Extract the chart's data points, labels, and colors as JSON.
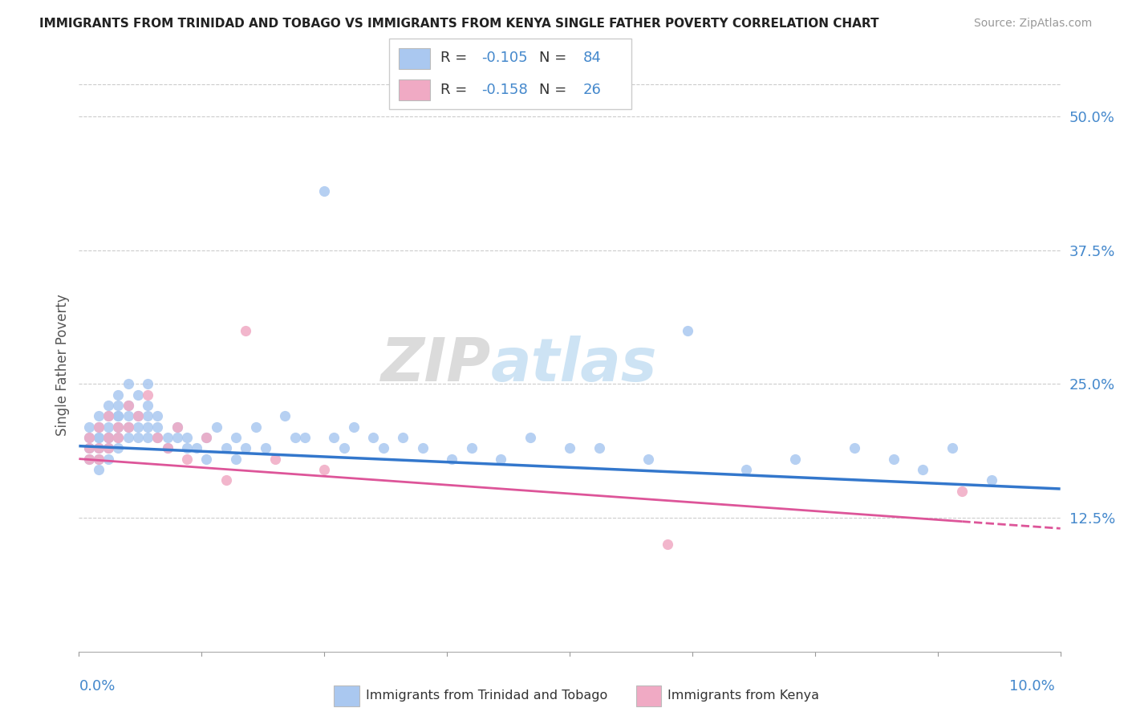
{
  "title": "IMMIGRANTS FROM TRINIDAD AND TOBAGO VS IMMIGRANTS FROM KENYA SINGLE FATHER POVERTY CORRELATION CHART",
  "source": "Source: ZipAtlas.com",
  "ylabel": "Single Father Poverty",
  "y_ticks": [
    0.125,
    0.25,
    0.375,
    0.5
  ],
  "y_tick_labels": [
    "12.5%",
    "25.0%",
    "37.5%",
    "50.0%"
  ],
  "x_min": 0.0,
  "x_max": 0.1,
  "y_min": 0.0,
  "y_max": 0.535,
  "blue_color": "#aac8f0",
  "pink_color": "#f0aac4",
  "blue_line_color": "#3377cc",
  "pink_line_color": "#dd5599",
  "label_color": "#4488cc",
  "text_color": "#333333",
  "grid_color": "#cccccc",
  "R_blue": -0.105,
  "N_blue": 84,
  "R_pink": -0.158,
  "N_pink": 26,
  "legend_label_blue": "Immigrants from Trinidad and Tobago",
  "legend_label_pink": "Immigrants from Kenya",
  "blue_intercept": 0.192,
  "blue_slope": -0.4,
  "pink_intercept": 0.18,
  "pink_slope": -0.65,
  "blue_x": [
    0.001,
    0.001,
    0.001,
    0.001,
    0.002,
    0.002,
    0.002,
    0.002,
    0.002,
    0.002,
    0.002,
    0.003,
    0.003,
    0.003,
    0.003,
    0.003,
    0.003,
    0.003,
    0.004,
    0.004,
    0.004,
    0.004,
    0.004,
    0.004,
    0.004,
    0.005,
    0.005,
    0.005,
    0.005,
    0.005,
    0.006,
    0.006,
    0.006,
    0.006,
    0.007,
    0.007,
    0.007,
    0.007,
    0.007,
    0.008,
    0.008,
    0.008,
    0.009,
    0.009,
    0.01,
    0.01,
    0.011,
    0.011,
    0.012,
    0.013,
    0.013,
    0.014,
    0.015,
    0.016,
    0.016,
    0.017,
    0.018,
    0.019,
    0.021,
    0.022,
    0.023,
    0.025,
    0.026,
    0.027,
    0.028,
    0.03,
    0.031,
    0.033,
    0.035,
    0.038,
    0.04,
    0.043,
    0.046,
    0.05,
    0.053,
    0.058,
    0.062,
    0.068,
    0.073,
    0.079,
    0.083,
    0.086,
    0.089,
    0.093
  ],
  "blue_y": [
    0.19,
    0.21,
    0.18,
    0.2,
    0.22,
    0.2,
    0.19,
    0.21,
    0.18,
    0.2,
    0.17,
    0.23,
    0.21,
    0.2,
    0.22,
    0.19,
    0.18,
    0.2,
    0.24,
    0.22,
    0.21,
    0.23,
    0.2,
    0.19,
    0.22,
    0.25,
    0.23,
    0.22,
    0.21,
    0.2,
    0.24,
    0.22,
    0.2,
    0.21,
    0.25,
    0.23,
    0.22,
    0.21,
    0.2,
    0.22,
    0.2,
    0.21,
    0.19,
    0.2,
    0.21,
    0.2,
    0.2,
    0.19,
    0.19,
    0.2,
    0.18,
    0.21,
    0.19,
    0.2,
    0.18,
    0.19,
    0.21,
    0.19,
    0.22,
    0.2,
    0.2,
    0.43,
    0.2,
    0.19,
    0.21,
    0.2,
    0.19,
    0.2,
    0.19,
    0.18,
    0.19,
    0.18,
    0.2,
    0.19,
    0.19,
    0.18,
    0.3,
    0.17,
    0.18,
    0.19,
    0.18,
    0.17,
    0.19,
    0.16
  ],
  "pink_x": [
    0.001,
    0.001,
    0.001,
    0.002,
    0.002,
    0.002,
    0.003,
    0.003,
    0.003,
    0.004,
    0.004,
    0.005,
    0.005,
    0.006,
    0.007,
    0.008,
    0.009,
    0.01,
    0.011,
    0.013,
    0.015,
    0.017,
    0.02,
    0.025,
    0.06,
    0.09
  ],
  "pink_y": [
    0.19,
    0.18,
    0.2,
    0.21,
    0.19,
    0.18,
    0.22,
    0.2,
    0.19,
    0.21,
    0.2,
    0.23,
    0.21,
    0.22,
    0.24,
    0.2,
    0.19,
    0.21,
    0.18,
    0.2,
    0.16,
    0.3,
    0.18,
    0.17,
    0.1,
    0.15
  ]
}
